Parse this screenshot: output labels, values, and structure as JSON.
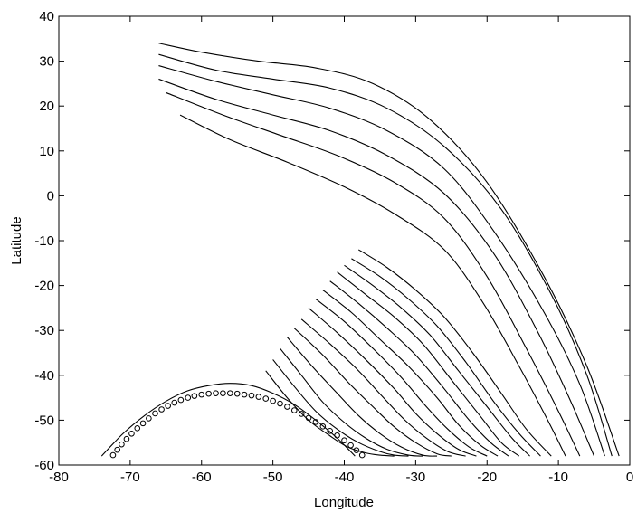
{
  "chart_data": {
    "type": "line",
    "xlabel": "Longitude",
    "ylabel": "Latitude",
    "xlim": [
      -80,
      0
    ],
    "ylim": [
      -60,
      40
    ],
    "xticks": [
      -80,
      -70,
      -60,
      -50,
      -40,
      -30,
      -20,
      -10,
      0
    ],
    "yticks": [
      -60,
      -50,
      -40,
      -30,
      -20,
      -10,
      0,
      10,
      20,
      30,
      40
    ],
    "grid": false,
    "series": [
      {
        "x": [
          -66,
          -60,
          -52,
          -44,
          -36,
          -28,
          -20,
          -12,
          -6,
          -1.5
        ],
        "y": [
          34,
          32,
          30,
          28.5,
          25,
          17,
          3,
          -18,
          -38,
          -58
        ]
      },
      {
        "x": [
          -66,
          -58,
          -50,
          -42,
          -34,
          -26,
          -18,
          -11,
          -6,
          -2.5
        ],
        "y": [
          31.5,
          28,
          26,
          24,
          19.5,
          11,
          -3,
          -22,
          -40,
          -58
        ]
      },
      {
        "x": [
          -66,
          -58,
          -50,
          -42,
          -34,
          -26,
          -19,
          -12,
          -7,
          -3.5
        ],
        "y": [
          29,
          25.5,
          22.5,
          19.5,
          14.5,
          6,
          -8,
          -26,
          -42,
          -58
        ]
      },
      {
        "x": [
          -66,
          -58,
          -50,
          -42,
          -34,
          -26,
          -19,
          -13,
          -8.5,
          -5
        ],
        "y": [
          26,
          21.5,
          18,
          14.5,
          9,
          0.5,
          -13,
          -30,
          -45,
          -58
        ]
      },
      {
        "x": [
          -65,
          -57,
          -49,
          -41,
          -33,
          -26,
          -20,
          -14.5,
          -10,
          -7
        ],
        "y": [
          23,
          18,
          13.5,
          9,
          3,
          -5,
          -18,
          -34,
          -48,
          -58
        ]
      },
      {
        "x": [
          -63,
          -56,
          -48,
          -40,
          -33,
          -26,
          -20.5,
          -15.5,
          -11.5,
          -9
        ],
        "y": [
          18,
          12.5,
          7.5,
          2,
          -4,
          -12,
          -24,
          -38,
          -50,
          -58
        ]
      },
      {
        "x": [
          -38,
          -34,
          -30,
          -26,
          -22,
          -18,
          -14.5,
          -11
        ],
        "y": [
          -12,
          -16,
          -21,
          -27,
          -35,
          -44,
          -52,
          -58
        ]
      },
      {
        "x": [
          -39,
          -35,
          -31,
          -27,
          -23,
          -19,
          -15.5,
          -12.5
        ],
        "y": [
          -14,
          -18,
          -23,
          -29,
          -37,
          -46,
          -53,
          -58
        ]
      },
      {
        "x": [
          -40,
          -36,
          -32,
          -28,
          -24,
          -20,
          -16.5,
          -14
        ],
        "y": [
          -15.5,
          -20,
          -25,
          -31,
          -39,
          -47,
          -54,
          -58
        ]
      },
      {
        "x": [
          -41,
          -37,
          -33,
          -29,
          -25,
          -21,
          -18,
          -15.5
        ],
        "y": [
          -17,
          -22,
          -27,
          -33,
          -41,
          -49,
          -55,
          -58
        ]
      },
      {
        "x": [
          -42,
          -38,
          -34,
          -30,
          -26,
          -22.5,
          -19.5,
          -17
        ],
        "y": [
          -19,
          -24,
          -29.5,
          -35.5,
          -43,
          -50,
          -55,
          -58
        ]
      },
      {
        "x": [
          -43,
          -39,
          -35,
          -31,
          -27,
          -24,
          -21,
          -18.5
        ],
        "y": [
          -21,
          -26,
          -32,
          -38,
          -45,
          -51,
          -55.5,
          -58
        ]
      },
      {
        "x": [
          -44,
          -40,
          -36,
          -32,
          -28.5,
          -25.5,
          -22.5,
          -20
        ],
        "y": [
          -23,
          -28,
          -34,
          -40.5,
          -47,
          -52,
          -56,
          -58
        ]
      },
      {
        "x": [
          -45,
          -41,
          -37,
          -33,
          -30,
          -27,
          -24,
          -21.5
        ],
        "y": [
          -25,
          -30.5,
          -36.5,
          -43,
          -48.5,
          -53,
          -56.5,
          -58
        ]
      },
      {
        "x": [
          -46,
          -42,
          -38,
          -34.5,
          -31.5,
          -28.5,
          -25.5,
          -23
        ],
        "y": [
          -27.5,
          -33,
          -39,
          -45,
          -50,
          -54,
          -57,
          -58
        ]
      },
      {
        "x": [
          -47,
          -43,
          -39.5,
          -36,
          -33,
          -30,
          -27,
          -25
        ],
        "y": [
          -29.5,
          -35.5,
          -41.5,
          -47,
          -51.5,
          -55,
          -57.5,
          -58
        ]
      },
      {
        "x": [
          -48,
          -44.5,
          -41,
          -38,
          -35,
          -32,
          -29,
          -27
        ],
        "y": [
          -31.5,
          -38,
          -44,
          -49,
          -53,
          -56,
          -57.8,
          -58
        ]
      },
      {
        "x": [
          -49,
          -46,
          -43,
          -40,
          -37,
          -34,
          -31,
          -29
        ],
        "y": [
          -34,
          -40,
          -46,
          -50.5,
          -54,
          -56.5,
          -57.8,
          -58
        ]
      },
      {
        "x": [
          -50,
          -47,
          -44,
          -41,
          -38,
          -35,
          -33,
          -31
        ],
        "y": [
          -36.5,
          -42.5,
          -48,
          -52,
          -55,
          -57,
          -57.8,
          -58
        ]
      },
      {
        "x": [
          -51,
          -48,
          -45,
          -42,
          -39.5,
          -37,
          -35,
          -33
        ],
        "y": [
          -39,
          -45,
          -50,
          -53.5,
          -56,
          -57.3,
          -57.8,
          -58
        ]
      },
      {
        "x": [
          -74,
          -71,
          -68,
          -65,
          -62,
          -59,
          -56,
          -53,
          -50,
          -47,
          -44,
          -41,
          -38.5
        ],
        "y": [
          -58,
          -53,
          -49,
          -45.8,
          -43.5,
          -42.3,
          -41.8,
          -42.3,
          -44,
          -46.5,
          -50,
          -54,
          -58
        ]
      }
    ],
    "markers": {
      "symbol": "circle",
      "x": [
        -72.4,
        -71.8,
        -71.2,
        -70.5,
        -69.8,
        -69.0,
        -68.2,
        -67.4,
        -66.5,
        -65.6,
        -64.7,
        -63.8,
        -62.9,
        -61.9,
        -61.0,
        -60.0,
        -59.0,
        -58.0,
        -57.0,
        -56.0,
        -55.0,
        -54.0,
        -53.0,
        -52.0,
        -51.0,
        -50.0,
        -49.0,
        -48.0,
        -47.0,
        -46.0,
        -45.0,
        -44.0,
        -43.0,
        -42.0,
        -41.0,
        -40.0,
        -39.1,
        -38.3,
        -37.5
      ],
      "y": [
        -57.8,
        -56.6,
        -55.4,
        -54.2,
        -53.0,
        -51.8,
        -50.7,
        -49.6,
        -48.5,
        -47.6,
        -46.8,
        -46.1,
        -45.5,
        -45.0,
        -44.6,
        -44.3,
        -44.1,
        -44.0,
        -44.0,
        -44.0,
        -44.1,
        -44.3,
        -44.5,
        -44.8,
        -45.2,
        -45.7,
        -46.3,
        -47.0,
        -47.8,
        -48.6,
        -49.5,
        -50.4,
        -51.4,
        -52.4,
        -53.4,
        -54.5,
        -55.6,
        -56.7,
        -57.8
      ]
    }
  }
}
